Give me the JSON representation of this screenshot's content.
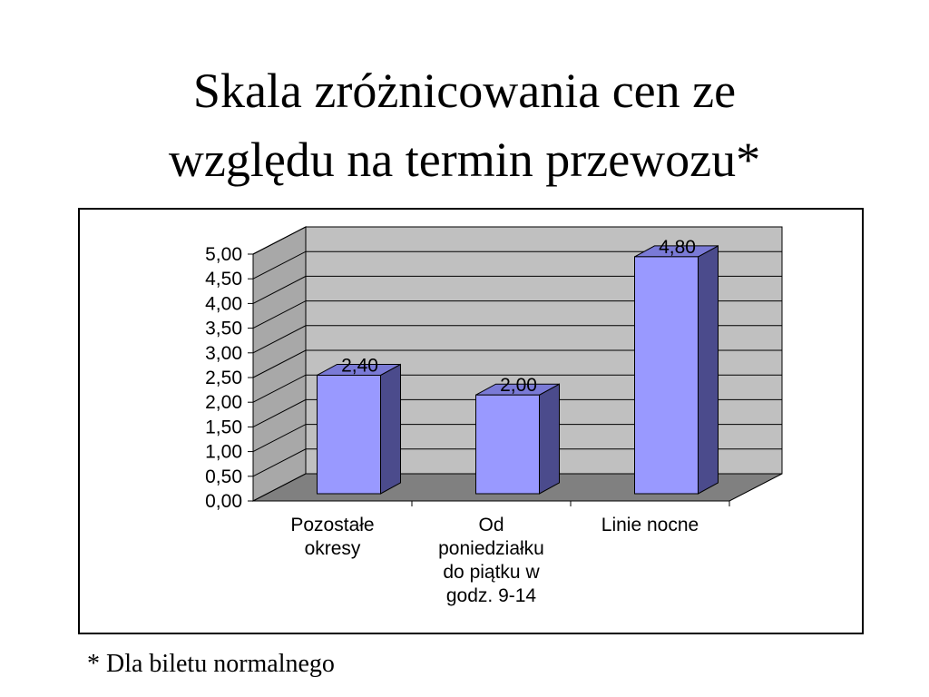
{
  "slide": {
    "title_line1": "Skala zróżnicowania cen ze",
    "title_line2": "względu na termin przewozu*",
    "footnote": "* Dla biletu normalnego"
  },
  "colors": {
    "bar_front": "#9999FF",
    "bar_side": "#4B4B8C",
    "bar_top": "#7A7AD6",
    "back_wall": "#C0C0C0",
    "side_wall": "#A8A8A8",
    "floor": "#808080",
    "gridline": "#000000"
  },
  "chart_data": {
    "type": "bar",
    "title": "",
    "xlabel": "",
    "ylabel": "",
    "ylim": [
      0,
      5
    ],
    "y_ticks": [
      "0,00",
      "0,50",
      "1,00",
      "1,50",
      "2,00",
      "2,50",
      "3,00",
      "3,50",
      "4,00",
      "4,50",
      "5,00"
    ],
    "categories": [
      [
        "Pozostałe",
        "okresy"
      ],
      [
        "Od",
        "poniedziałku",
        "do piątku w",
        "godz. 9-14"
      ],
      [
        "Linie nocne"
      ]
    ],
    "values": [
      2.4,
      2.0,
      4.8
    ],
    "data_labels": [
      "2,40",
      "2,00",
      "4,80"
    ],
    "grid": true,
    "legend": "none",
    "style": "3d-column"
  }
}
